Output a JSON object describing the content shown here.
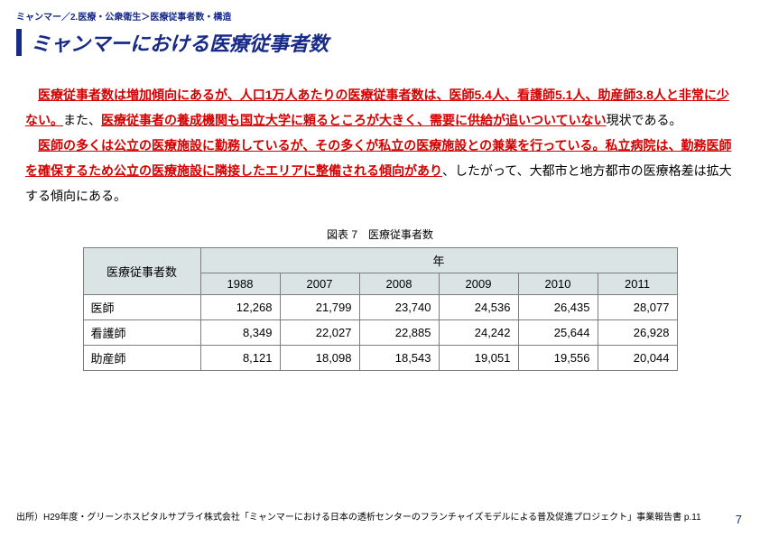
{
  "breadcrumb": "ミャンマー／2.医療・公衆衛生＞医療従事者数・構造",
  "title": "ミャンマーにおける医療従事者数",
  "body": {
    "seg1_hl": "医療従事者数は増加傾向にあるが、人口1万人あたりの医療従事者数は、医師5.4人、看護師5.1人、助産師3.8人と非常に少ない。",
    "seg2_plain": "また、",
    "seg3_hl": "医療従事者の養成機関も国立大学に頼るところが大きく、需要に供給が追いついていない",
    "seg4_plain": "現状である。",
    "seg5_hl": "医師の多くは公立の医療施設に勤務しているが、その多くが私立の医療施設との兼業を行っている。私立病院は、勤務医師を確保するため公立の医療施設に隣接したエリアに整備される傾向があり",
    "seg6_plain": "、したがって、大都市と地方都市の医療格差は拡大する傾向にある。"
  },
  "table": {
    "caption": "図表 7　医療従事者数",
    "header_category": "医療従事者数",
    "header_year": "年",
    "years": [
      "1988",
      "2007",
      "2008",
      "2009",
      "2010",
      "2011"
    ],
    "rows": [
      {
        "label": "医師",
        "values": [
          "12,268",
          "21,799",
          "23,740",
          "24,536",
          "26,435",
          "28,077"
        ]
      },
      {
        "label": "看護師",
        "values": [
          "8,349",
          "22,027",
          "22,885",
          "24,242",
          "25,644",
          "26,928"
        ]
      },
      {
        "label": "助産師",
        "values": [
          "8,121",
          "18,098",
          "18,543",
          "19,051",
          "19,556",
          "20,044"
        ]
      }
    ],
    "border_color": "#7e7e7e",
    "header_bg": "#dbe4e4"
  },
  "source": "出所）H29年度・グリーンホスピタルサプライ株式会社「ミャンマーにおける日本の透析センターのフランチャイズモデルによる普及促進プロジェクト」事業報告書 p.11",
  "page_number": "7",
  "colors": {
    "brand_navy": "#172a88",
    "highlight_red": "#d40000"
  }
}
